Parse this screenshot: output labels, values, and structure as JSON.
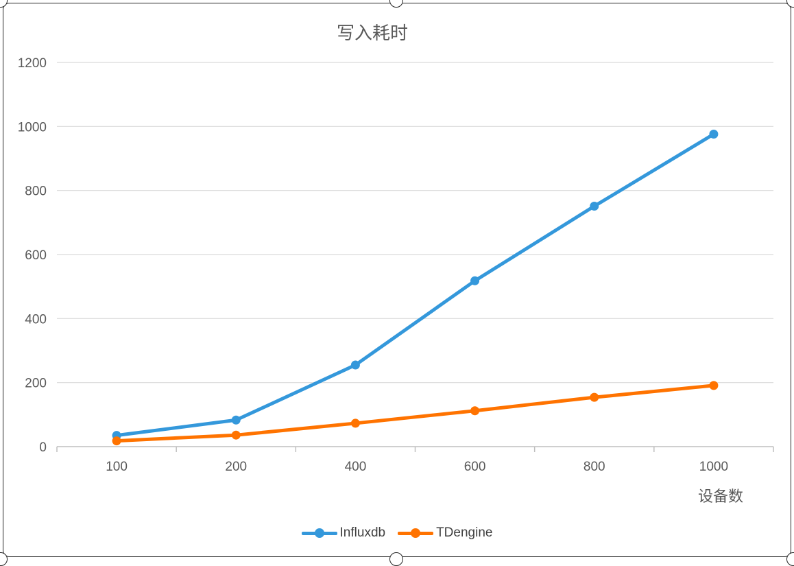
{
  "chart_data": {
    "type": "line",
    "title": "写入耗时",
    "xlabel": "设备数",
    "ylabel": "",
    "categories": [
      "100",
      "200",
      "400",
      "600",
      "800",
      "1000"
    ],
    "series": [
      {
        "name": "Influxdb",
        "color": "#3498DB",
        "values": [
          35,
          83,
          255,
          518,
          751,
          976
        ]
      },
      {
        "name": "TDengine",
        "color": "#FF7300",
        "values": [
          18,
          36,
          73,
          112,
          154,
          191
        ]
      }
    ],
    "ylim": [
      0,
      1200
    ],
    "yticks": [
      0,
      200,
      400,
      600,
      800,
      1000,
      1200
    ],
    "grid": true,
    "legend_position": "bottom"
  }
}
